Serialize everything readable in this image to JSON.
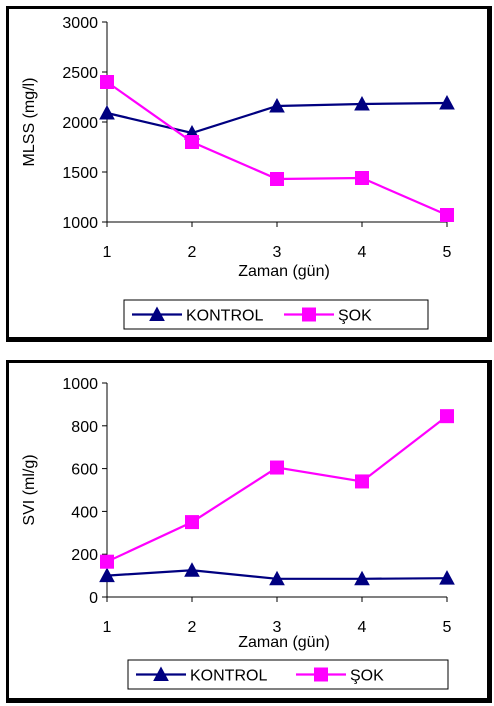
{
  "chart_data": [
    {
      "type": "line",
      "title": "",
      "xlabel": "Zaman (gün)",
      "ylabel": "MLSS (mg/l)",
      "x": [
        1,
        2,
        3,
        4,
        5
      ],
      "xlim": [
        1,
        5
      ],
      "ylim": [
        1000,
        3000
      ],
      "yticks": [
        1000,
        1500,
        2000,
        2500,
        3000
      ],
      "xticks": [
        1,
        2,
        3,
        4,
        5
      ],
      "grid": false,
      "legend_position": "bottom",
      "series": [
        {
          "name": "KONTROL",
          "color": "#000080",
          "marker": "triangle",
          "values": [
            2090,
            1890,
            2160,
            2180,
            2190
          ]
        },
        {
          "name": "ŞOK",
          "color": "#ff00ff",
          "marker": "square",
          "values": [
            2400,
            1800,
            1430,
            1440,
            1070
          ]
        }
      ]
    },
    {
      "type": "line",
      "title": "",
      "xlabel": "Zaman (gün)",
      "ylabel": "SVI (ml/g)",
      "x": [
        1,
        2,
        3,
        4,
        5
      ],
      "xlim": [
        1,
        5
      ],
      "ylim": [
        0,
        1000
      ],
      "yticks": [
        0,
        200,
        400,
        600,
        800,
        1000
      ],
      "xticks": [
        1,
        2,
        3,
        4,
        5
      ],
      "grid": false,
      "legend_position": "bottom",
      "series": [
        {
          "name": "KONTROL",
          "color": "#000080",
          "marker": "triangle",
          "values": [
            100,
            125,
            85,
            85,
            88
          ]
        },
        {
          "name": "ŞOK",
          "color": "#ff00ff",
          "marker": "square",
          "values": [
            165,
            350,
            605,
            540,
            845
          ]
        }
      ]
    }
  ]
}
